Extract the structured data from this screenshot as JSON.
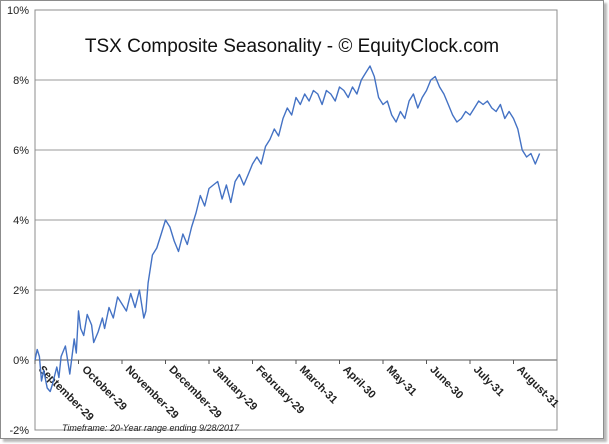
{
  "chart_data": {
    "type": "line",
    "title": "TSX Composite Seasonality - © EquityClock.com",
    "footnote": "Timeframe: 20-Year range ending 9/28/2017",
    "ylim": [
      -2,
      10
    ],
    "y_ticks": [
      "-2%",
      "0%",
      "2%",
      "4%",
      "6%",
      "8%",
      "10%"
    ],
    "y_tick_values": [
      -2,
      0,
      2,
      4,
      6,
      8,
      10
    ],
    "categories": [
      "September-29",
      "October-29",
      "November-29",
      "December-29",
      "January-29",
      "February-29",
      "March-31",
      "April-30",
      "May-31",
      "June-30",
      "July-31",
      "August-31"
    ],
    "x_range": [
      0,
      12
    ],
    "grid": true,
    "line_color": "#4472c4",
    "series": [
      {
        "x": [
          0.0,
          0.05,
          0.1,
          0.15,
          0.2,
          0.28,
          0.35,
          0.4,
          0.5,
          0.55,
          0.6,
          0.7,
          0.75,
          0.8,
          0.9,
          0.95,
          1.0,
          1.05,
          1.12,
          1.2,
          1.3,
          1.35,
          1.45,
          1.55,
          1.6,
          1.7,
          1.8,
          1.9,
          2.0,
          2.1,
          2.2,
          2.3,
          2.4,
          2.5,
          2.55,
          2.6,
          2.7,
          2.8,
          2.9,
          3.0,
          3.1,
          3.2,
          3.3,
          3.4,
          3.5,
          3.6,
          3.7,
          3.8,
          3.9,
          4.0,
          4.1,
          4.2,
          4.3,
          4.4,
          4.5,
          4.6,
          4.7,
          4.8,
          4.9,
          5.0,
          5.1,
          5.2,
          5.3,
          5.4,
          5.5,
          5.6,
          5.7,
          5.8,
          5.9,
          6.0,
          6.1,
          6.2,
          6.3,
          6.4,
          6.5,
          6.6,
          6.7,
          6.8,
          6.9,
          7.0,
          7.1,
          7.2,
          7.3,
          7.4,
          7.5,
          7.6,
          7.7,
          7.8,
          7.9,
          8.0,
          8.1,
          8.2,
          8.3,
          8.4,
          8.5,
          8.6,
          8.7,
          8.8,
          8.9,
          9.0,
          9.1,
          9.2,
          9.3,
          9.4,
          9.5,
          9.6,
          9.7,
          9.8,
          9.9,
          10.0,
          10.1,
          10.2,
          10.3,
          10.4,
          10.5,
          10.6,
          10.7,
          10.8,
          10.9,
          11.0,
          11.1,
          11.2,
          11.3,
          11.4,
          11.5,
          11.6
        ],
        "y": [
          0.0,
          0.3,
          0.1,
          -0.6,
          -0.3,
          -0.8,
          -0.9,
          -0.7,
          -0.2,
          -0.5,
          0.1,
          0.4,
          0.0,
          -0.4,
          0.6,
          0.2,
          1.4,
          0.9,
          0.7,
          1.3,
          1.0,
          0.5,
          0.8,
          1.2,
          0.9,
          1.5,
          1.2,
          1.8,
          1.6,
          1.4,
          1.9,
          1.5,
          2.0,
          1.2,
          1.4,
          2.2,
          3.0,
          3.2,
          3.6,
          4.0,
          3.8,
          3.4,
          3.1,
          3.6,
          3.3,
          3.8,
          4.2,
          4.7,
          4.4,
          4.9,
          5.0,
          5.1,
          4.6,
          5.0,
          4.5,
          5.1,
          5.3,
          5.0,
          5.3,
          5.6,
          5.8,
          5.6,
          6.1,
          6.3,
          6.6,
          6.4,
          6.9,
          7.2,
          7.0,
          7.5,
          7.3,
          7.6,
          7.4,
          7.7,
          7.6,
          7.3,
          7.7,
          7.6,
          7.4,
          7.8,
          7.7,
          7.5,
          7.8,
          7.6,
          8.0,
          8.2,
          8.4,
          8.1,
          7.5,
          7.3,
          7.4,
          7.0,
          6.8,
          7.1,
          6.9,
          7.4,
          7.6,
          7.2,
          7.5,
          7.7,
          8.0,
          8.1,
          7.8,
          7.6,
          7.3,
          7.0,
          6.8,
          6.9,
          7.1,
          7.0,
          7.2,
          7.4,
          7.3,
          7.4,
          7.2,
          7.1,
          7.3,
          6.9,
          7.1,
          6.9,
          6.6,
          6.0,
          5.8,
          5.9,
          5.6,
          5.9
        ]
      }
    ]
  }
}
